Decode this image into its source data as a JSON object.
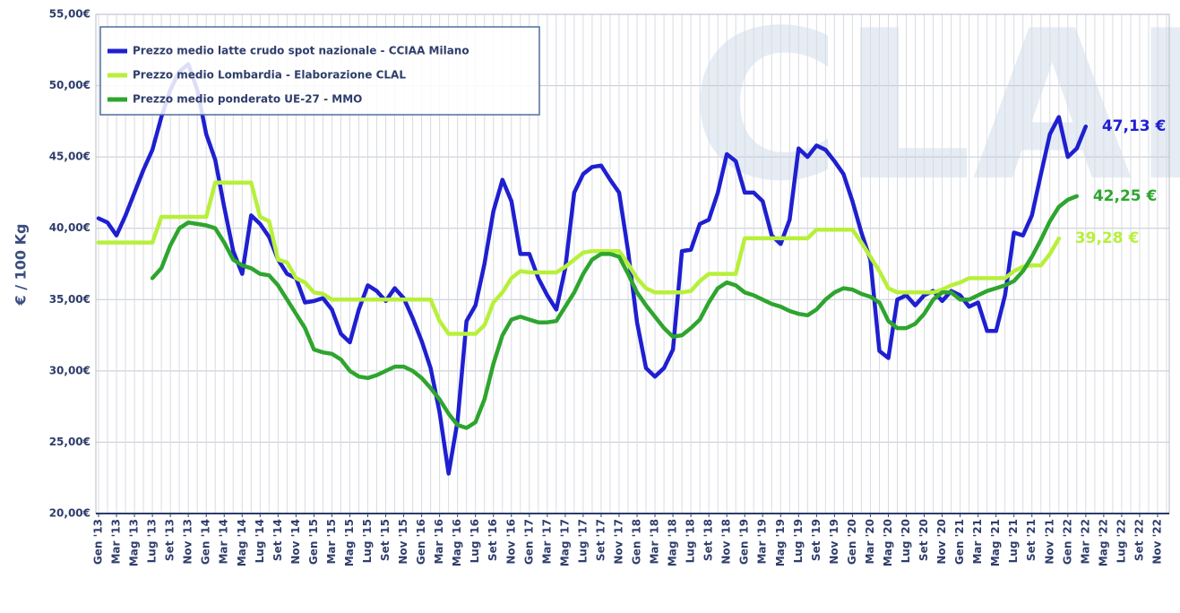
{
  "chart_data": {
    "type": "line",
    "watermark": "CLAL",
    "ylabel": "€ / 100 Kg",
    "categories": [
      "Gen '13",
      null,
      "Mar '13",
      null,
      "Mag '13",
      null,
      "Lug '13",
      null,
      "Set '13",
      null,
      "Nov '13",
      null,
      "Gen '14",
      null,
      "Mar '14",
      null,
      "Mag '14",
      null,
      "Lug '14",
      null,
      "Set '14",
      null,
      "Nov '14",
      null,
      "Gen '15",
      null,
      "Mar '15",
      null,
      "Mag '15",
      null,
      "Lug '15",
      null,
      "Set '15",
      null,
      "Nov '15",
      null,
      "Gen '16",
      null,
      "Mar '16",
      null,
      "Mag '16",
      null,
      "Lug '16",
      null,
      "Set '16",
      null,
      "Nov '16",
      null,
      "Gen '17",
      null,
      "Mar '17",
      null,
      "Mag '17",
      null,
      "Lug '17",
      null,
      "Set '17",
      null,
      "Nov '17",
      null,
      "Gen '18",
      null,
      "Mar '18",
      null,
      "Mag '18",
      null,
      "Lug '18",
      null,
      "Set '18",
      null,
      "Nov '18",
      null,
      "Gen '19",
      null,
      "Mar '19",
      null,
      "Mag '19",
      null,
      "Lug '19",
      null,
      "Set '19",
      null,
      "Nov '19",
      null,
      "Gen '20",
      null,
      "Mar '20",
      null,
      "Mag '20",
      null,
      "Lug '20",
      null,
      "Set '20",
      null,
      "Nov '20",
      null,
      "Gen '21",
      null,
      "Mar '21",
      null,
      "Mag '21",
      null,
      "Lug '21",
      null,
      "Set '21",
      null,
      "Nov '21",
      null,
      "Gen '22",
      null,
      "Mar '22",
      null,
      "Mag '22",
      null,
      "Lug '22",
      null,
      "Set '22",
      null,
      "Nov '22",
      null
    ],
    "series": [
      {
        "name": "Prezzo medio latte crudo spot nazionale - CCIAA Milano",
        "color": "#1f1fd1",
        "values": [
          40.7,
          40.4,
          39.5,
          40.9,
          42.5,
          44.1,
          45.5,
          47.8,
          49.7,
          51.0,
          51.5,
          49.7,
          46.6,
          44.8,
          41.5,
          38.4,
          36.8,
          40.9,
          40.3,
          39.4,
          37.8,
          36.8,
          36.5,
          34.8,
          34.9,
          35.1,
          34.3,
          32.6,
          32.0,
          34.3,
          36.0,
          35.6,
          34.9,
          35.8,
          35.1,
          33.7,
          32.1,
          30.2,
          27.1,
          22.8,
          26.5,
          33.5,
          34.6,
          37.5,
          41.2,
          43.4,
          41.9,
          38.2,
          38.2,
          36.5,
          35.3,
          34.3,
          37.2,
          42.5,
          43.8,
          44.3,
          44.4,
          43.4,
          42.5,
          38.4,
          33.4,
          30.2,
          29.6,
          30.2,
          31.5,
          38.4,
          38.5,
          40.3,
          40.6,
          42.5,
          45.2,
          44.7,
          42.5,
          42.5,
          41.9,
          39.5,
          38.9,
          40.6,
          45.6,
          45.0,
          45.8,
          45.5,
          44.7,
          43.8,
          41.9,
          39.7,
          37.8,
          31.4,
          30.9,
          35.0,
          35.3,
          34.6,
          35.3,
          35.6,
          34.9,
          35.6,
          35.3,
          34.5,
          34.8,
          32.8,
          32.8,
          35.3,
          39.7,
          39.5,
          40.9,
          43.8,
          46.6,
          47.8,
          45.0,
          45.6,
          47.13,
          null,
          null,
          null,
          null,
          null,
          null,
          null,
          null,
          null
        ],
        "value_labels": [
          null,
          null,
          null,
          null,
          null,
          null,
          null,
          null,
          null,
          null,
          null,
          null,
          null,
          null,
          null,
          null,
          null,
          null,
          null,
          null,
          null,
          null,
          null,
          null,
          null,
          null,
          null,
          null,
          null,
          null,
          null,
          null,
          null,
          null,
          null,
          null,
          null,
          null,
          null,
          null,
          null,
          null,
          null,
          null,
          null,
          null,
          null,
          null,
          null,
          null,
          null,
          null,
          null,
          null,
          null,
          null,
          null,
          null,
          null,
          null,
          null,
          null,
          null,
          null,
          null,
          null,
          null,
          null,
          null,
          null,
          null,
          null,
          null,
          null,
          null,
          null,
          null,
          null,
          null,
          null,
          null,
          null,
          null,
          null,
          null,
          null,
          null,
          null,
          null,
          null,
          null,
          null,
          null,
          null,
          null,
          null,
          null,
          null,
          null,
          null,
          null,
          null,
          null,
          null,
          null,
          null,
          null,
          null,
          null,
          null,
          "47,13 €",
          null,
          null,
          null,
          null,
          null,
          null,
          null,
          null,
          null
        ]
      },
      {
        "name": "Prezzo medio Lombardia - Elaborazione CLAL",
        "color": "#b7f03a",
        "values": [
          39.0,
          39.0,
          39.0,
          39.0,
          39.0,
          39.0,
          39.0,
          40.8,
          40.8,
          40.8,
          40.8,
          40.8,
          40.8,
          43.2,
          43.2,
          43.2,
          43.2,
          43.2,
          40.8,
          40.5,
          37.8,
          37.6,
          36.5,
          36.2,
          35.5,
          35.4,
          35.0,
          35.0,
          35.0,
          35.0,
          35.0,
          35.0,
          35.0,
          35.0,
          35.0,
          35.0,
          35.0,
          35.0,
          33.5,
          32.6,
          32.6,
          32.6,
          32.6,
          33.2,
          34.8,
          35.5,
          36.5,
          37.0,
          36.9,
          36.9,
          36.9,
          36.9,
          37.3,
          37.8,
          38.3,
          38.4,
          38.4,
          38.4,
          38.4,
          37.5,
          36.5,
          35.8,
          35.5,
          35.5,
          35.5,
          35.5,
          35.6,
          36.3,
          36.8,
          36.8,
          36.8,
          36.8,
          39.3,
          39.3,
          39.3,
          39.3,
          39.3,
          39.3,
          39.3,
          39.3,
          39.9,
          39.9,
          39.9,
          39.9,
          39.9,
          39.0,
          38.0,
          37.0,
          35.8,
          35.5,
          35.5,
          35.5,
          35.5,
          35.5,
          35.7,
          36.0,
          36.2,
          36.5,
          36.5,
          36.5,
          36.5,
          36.5,
          37.0,
          37.3,
          37.4,
          37.4,
          38.2,
          39.28,
          null,
          null,
          null,
          null,
          null,
          null,
          null,
          null,
          null,
          null,
          null,
          null
        ],
        "value_labels": [
          null,
          null,
          null,
          null,
          null,
          null,
          null,
          null,
          null,
          null,
          null,
          null,
          null,
          null,
          null,
          null,
          null,
          null,
          null,
          null,
          null,
          null,
          null,
          null,
          null,
          null,
          null,
          null,
          null,
          null,
          null,
          null,
          null,
          null,
          null,
          null,
          null,
          null,
          null,
          null,
          null,
          null,
          null,
          null,
          null,
          null,
          null,
          null,
          null,
          null,
          null,
          null,
          null,
          null,
          null,
          null,
          null,
          null,
          null,
          null,
          null,
          null,
          null,
          null,
          null,
          null,
          null,
          null,
          null,
          null,
          null,
          null,
          null,
          null,
          null,
          null,
          null,
          null,
          null,
          null,
          null,
          null,
          null,
          null,
          null,
          null,
          null,
          null,
          null,
          null,
          null,
          null,
          null,
          null,
          null,
          null,
          null,
          null,
          null,
          null,
          null,
          null,
          null,
          null,
          null,
          null,
          null,
          "39,28 €",
          null,
          null,
          null,
          null,
          null,
          null,
          null,
          null,
          null,
          null,
          null,
          null
        ]
      },
      {
        "name": "Prezzo medio ponderato UE-27 - MMO",
        "color": "#2ea52e",
        "values": [
          null,
          null,
          null,
          null,
          null,
          null,
          36.5,
          37.2,
          38.8,
          40.0,
          40.4,
          40.3,
          40.2,
          40.0,
          39.0,
          37.8,
          37.4,
          37.2,
          36.8,
          36.7,
          36.0,
          35.0,
          34.0,
          33.0,
          31.5,
          31.3,
          31.2,
          30.8,
          30.0,
          29.6,
          29.5,
          29.7,
          30.0,
          30.3,
          30.3,
          30.0,
          29.5,
          28.8,
          28.0,
          27.0,
          26.2,
          26.0,
          26.4,
          28.0,
          30.5,
          32.5,
          33.6,
          33.8,
          33.6,
          33.4,
          33.4,
          33.5,
          34.5,
          35.5,
          36.8,
          37.8,
          38.2,
          38.2,
          38.0,
          36.8,
          35.5,
          34.6,
          33.8,
          33.0,
          32.4,
          32.5,
          33.0,
          33.6,
          34.8,
          35.8,
          36.2,
          36.0,
          35.5,
          35.3,
          35.0,
          34.7,
          34.5,
          34.2,
          34.0,
          33.9,
          34.3,
          35.0,
          35.5,
          35.8,
          35.7,
          35.4,
          35.2,
          34.8,
          33.5,
          33.0,
          33.0,
          33.3,
          34.0,
          35.0,
          35.5,
          35.5,
          35.0,
          35.0,
          35.3,
          35.6,
          35.8,
          36.0,
          36.3,
          37.0,
          38.0,
          39.2,
          40.5,
          41.5,
          42.0,
          42.25,
          null,
          null,
          null,
          null,
          null,
          null,
          null,
          null,
          null,
          null
        ],
        "value_labels": [
          null,
          null,
          null,
          null,
          null,
          null,
          null,
          null,
          null,
          null,
          null,
          null,
          null,
          null,
          null,
          null,
          null,
          null,
          null,
          null,
          null,
          null,
          null,
          null,
          null,
          null,
          null,
          null,
          null,
          null,
          null,
          null,
          null,
          null,
          null,
          null,
          null,
          null,
          null,
          null,
          null,
          null,
          null,
          null,
          null,
          null,
          null,
          null,
          null,
          null,
          null,
          null,
          null,
          null,
          null,
          null,
          null,
          null,
          null,
          null,
          null,
          null,
          null,
          null,
          null,
          null,
          null,
          null,
          null,
          null,
          null,
          null,
          null,
          null,
          null,
          null,
          null,
          null,
          null,
          null,
          null,
          null,
          null,
          null,
          null,
          null,
          null,
          null,
          null,
          null,
          null,
          null,
          null,
          null,
          null,
          null,
          null,
          null,
          null,
          null,
          null,
          null,
          null,
          null,
          null,
          null,
          null,
          null,
          null,
          "42,25 €",
          null,
          null,
          null,
          null,
          null,
          null,
          null,
          null,
          null,
          null
        ]
      }
    ],
    "ylim": [
      20,
      55
    ],
    "yticks": [
      {
        "value": 20,
        "label": "20,00€"
      },
      {
        "value": 25,
        "label": "25,00€"
      },
      {
        "value": 30,
        "label": "30,00€"
      },
      {
        "value": 35,
        "label": "35,00€"
      },
      {
        "value": 40,
        "label": "40,00€"
      },
      {
        "value": 45,
        "label": "45,00€"
      },
      {
        "value": 50,
        "label": "50,00€"
      },
      {
        "value": 55,
        "label": "55,00€"
      }
    ],
    "grid": true,
    "legend": "upper left"
  }
}
